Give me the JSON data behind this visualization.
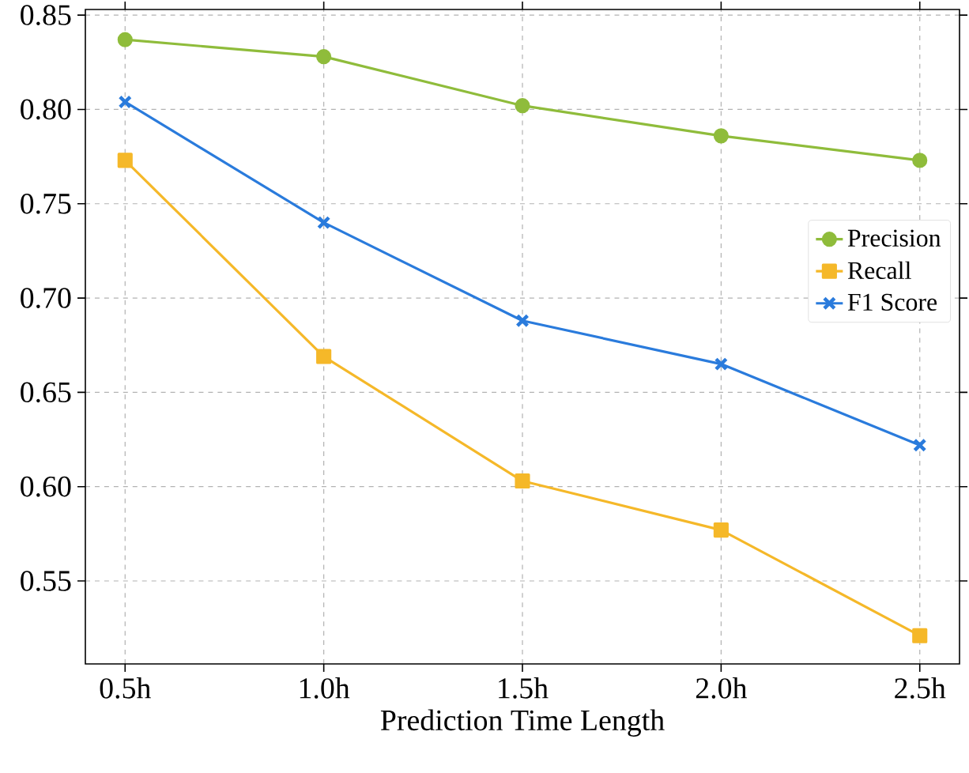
{
  "chart_data": {
    "type": "line",
    "xlabel": "Prediction Time Length",
    "categories": [
      "0.5h",
      "1.0h",
      "1.5h",
      "2.0h",
      "2.5h"
    ],
    "series": [
      {
        "name": "Precision",
        "color": "#8fbc3b",
        "marker": "circle",
        "values": [
          0.837,
          0.828,
          0.802,
          0.786,
          0.773
        ]
      },
      {
        "name": "Recall",
        "color": "#f5b829",
        "marker": "square",
        "values": [
          0.773,
          0.669,
          0.603,
          0.577,
          0.521
        ]
      },
      {
        "name": "F1 Score",
        "color": "#2a7bdc",
        "marker": "cross",
        "values": [
          0.804,
          0.74,
          0.688,
          0.665,
          0.622
        ]
      }
    ],
    "ylim": [
      0.506,
      0.853
    ],
    "yticks": [
      {
        "value": 0.55,
        "label": "0.55"
      },
      {
        "value": 0.6,
        "label": "0.60"
      },
      {
        "value": 0.65,
        "label": "0.65"
      },
      {
        "value": 0.7,
        "label": "0.70"
      },
      {
        "value": 0.75,
        "label": "0.75"
      },
      {
        "value": 0.8,
        "label": "0.80"
      },
      {
        "value": 0.85,
        "label": "0.85"
      }
    ],
    "grid": true,
    "legend": "right",
    "line_style": "solid"
  }
}
